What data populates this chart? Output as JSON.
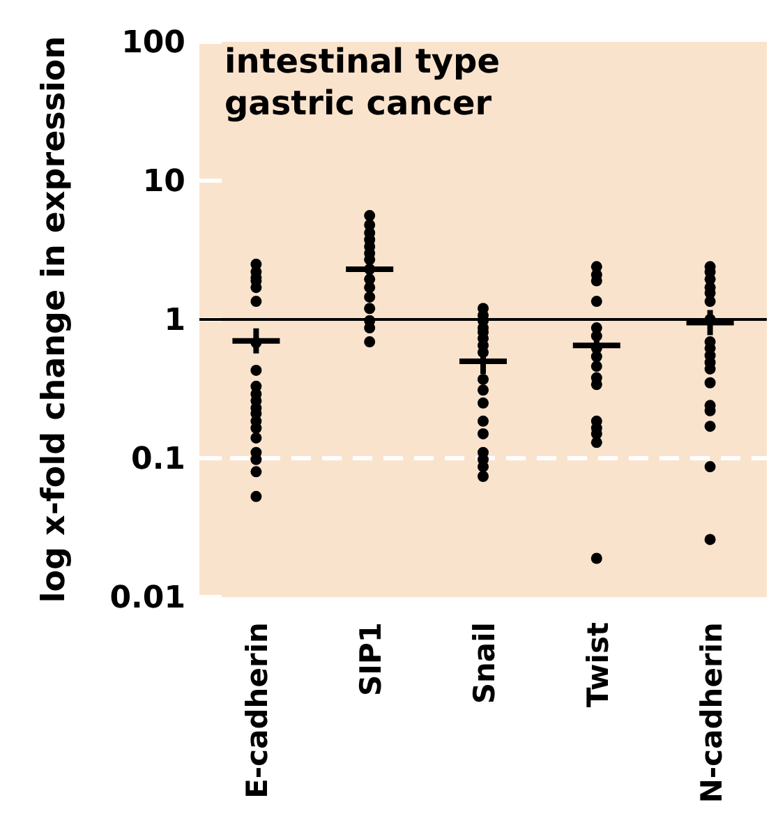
{
  "chart_data": {
    "type": "scatter",
    "title": "intestinal type\ngastric cancer",
    "ylabel": "log x-fold change in expression",
    "categories": [
      "E-cadherin",
      "SIP1",
      "Snail",
      "Twist",
      "N-cadherin"
    ],
    "log": "y",
    "ylim": [
      0.01,
      100
    ],
    "yticks": [
      0.01,
      0.1,
      1,
      10,
      100
    ],
    "grid": false,
    "ref_lines": [
      {
        "axis": "y",
        "value": 1,
        "color": "#000000",
        "line_style": "solid"
      },
      {
        "axis": "y",
        "value": 0.1,
        "color": "#ffffff",
        "line_style": "dashed"
      }
    ],
    "series": [
      {
        "marker": "circle",
        "color": "#000000",
        "x": [
          "E-cadherin",
          "E-cadherin",
          "E-cadherin",
          "E-cadherin",
          "E-cadherin",
          "E-cadherin",
          "E-cadherin",
          "E-cadherin",
          "E-cadherin",
          "E-cadherin",
          "E-cadherin",
          "E-cadherin",
          "E-cadherin",
          "E-cadherin",
          "E-cadherin",
          "E-cadherin",
          "E-cadherin",
          "E-cadherin",
          "E-cadherin",
          "E-cadherin",
          "SIP1",
          "SIP1",
          "SIP1",
          "SIP1",
          "SIP1",
          "SIP1",
          "SIP1",
          "SIP1",
          "SIP1",
          "SIP1",
          "SIP1",
          "SIP1",
          "SIP1",
          "SIP1",
          "SIP1",
          "Snail",
          "Snail",
          "Snail",
          "Snail",
          "Snail",
          "Snail",
          "Snail",
          "Snail",
          "Snail",
          "Snail",
          "Snail",
          "Snail",
          "Snail",
          "Snail",
          "Snail",
          "Snail",
          "Snail",
          "Twist",
          "Twist",
          "Twist",
          "Twist",
          "Twist",
          "Twist",
          "Twist",
          "Twist",
          "Twist",
          "Twist",
          "Twist",
          "Twist",
          "Twist",
          "Twist",
          "Twist",
          "Twist",
          "N-cadherin",
          "N-cadherin",
          "N-cadherin",
          "N-cadherin",
          "N-cadherin",
          "N-cadherin",
          "N-cadherin",
          "N-cadherin",
          "N-cadherin",
          "N-cadherin",
          "N-cadherin",
          "N-cadherin",
          "N-cadherin",
          "N-cadherin",
          "N-cadherin",
          "N-cadherin",
          "N-cadherin",
          "N-cadherin"
        ],
        "values": [
          2.5,
          2.2,
          2.0,
          1.9,
          1.7,
          1.35,
          0.68,
          0.43,
          0.33,
          0.29,
          0.26,
          0.23,
          0.21,
          0.185,
          0.165,
          0.14,
          0.11,
          0.098,
          0.08,
          0.053,
          5.6,
          4.8,
          4.2,
          3.75,
          3.35,
          3.0,
          2.7,
          2.3,
          1.95,
          1.7,
          1.45,
          1.2,
          0.98,
          0.87,
          0.69,
          1.2,
          1.07,
          0.98,
          0.87,
          0.81,
          0.73,
          0.65,
          0.58,
          0.37,
          0.31,
          0.25,
          0.185,
          0.15,
          0.11,
          0.098,
          0.087,
          0.074,
          2.4,
          2.1,
          1.9,
          1.35,
          0.87,
          0.76,
          0.62,
          0.54,
          0.46,
          0.38,
          0.34,
          0.185,
          0.165,
          0.15,
          0.13,
          0.019,
          2.4,
          2.2,
          1.95,
          1.7,
          1.55,
          1.35,
          1.0,
          0.69,
          0.62,
          0.55,
          0.49,
          0.44,
          0.35,
          0.24,
          0.22,
          0.17,
          0.087,
          0.026
        ]
      },
      {
        "marker": "cross",
        "color": "#000000",
        "x": [
          "E-cadherin",
          "SIP1",
          "Snail",
          "Twist",
          "N-cadherin"
        ],
        "values": [
          0.7,
          2.3,
          0.5,
          0.65,
          0.95
        ]
      }
    ]
  }
}
